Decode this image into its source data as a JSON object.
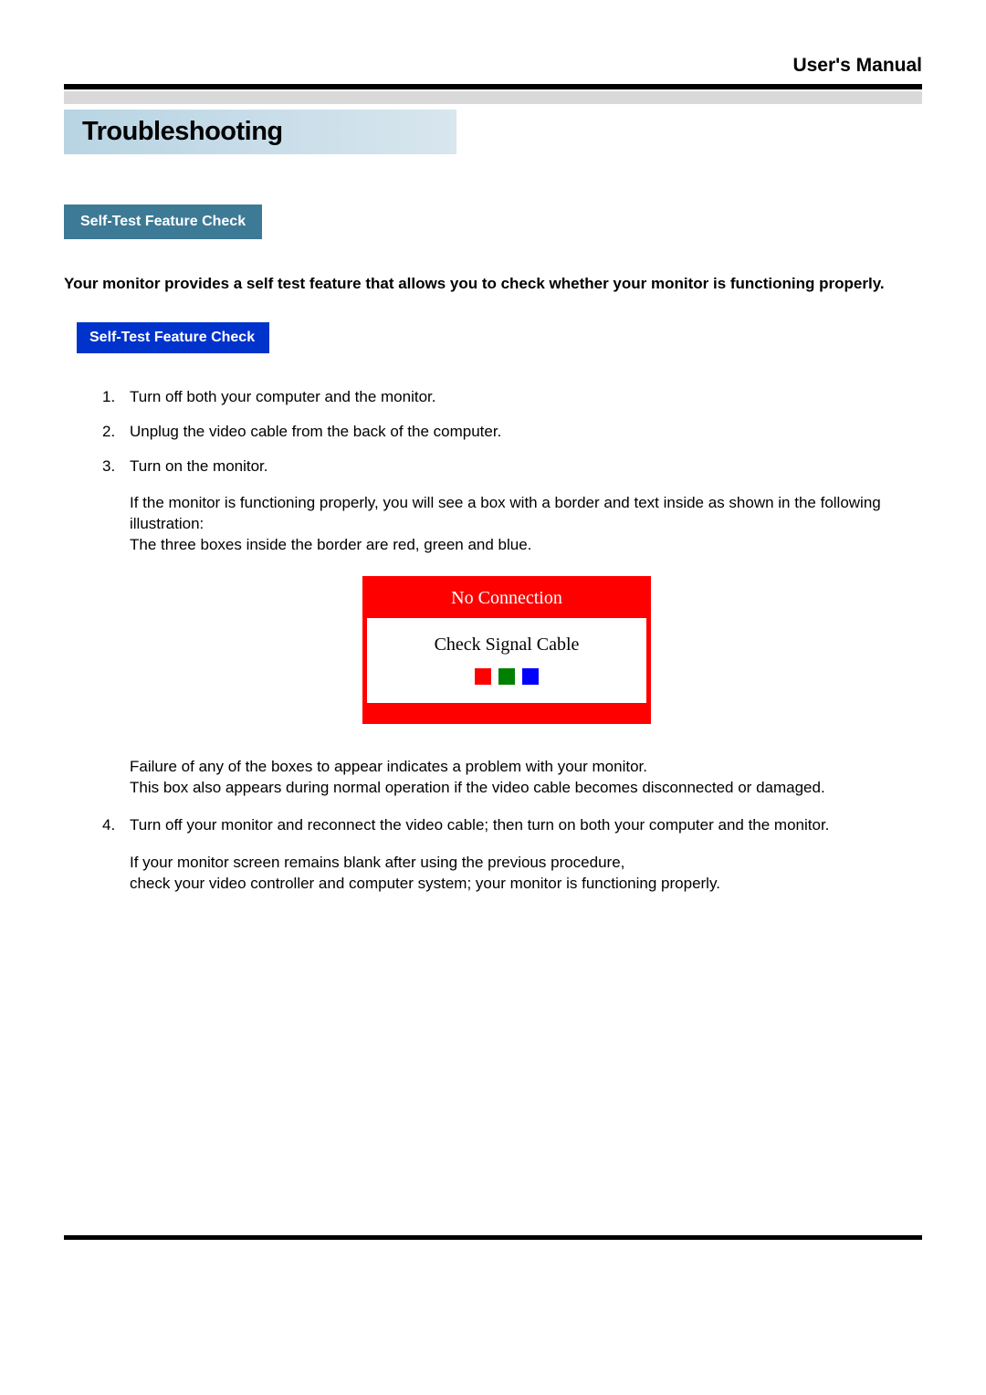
{
  "header": {
    "right_label": "User's Manual"
  },
  "title": "Troubleshooting",
  "section_tag_1": "Self-Test Feature Check",
  "intro": "Your monitor provides a self test feature that allows you to check whether your monitor is functioning properly.",
  "section_tag_2": "Self-Test Feature Check",
  "steps": {
    "s1": "Turn off both your computer and the monitor.",
    "s2": "Unplug the video cable from the back of the computer.",
    "s3": "Turn on the monitor."
  },
  "para_after_3_a": "If the monitor is functioning properly, you will see a box with a border and  text inside as shown in the following illustration:",
  "para_after_3_b": "The three boxes inside the border are red, green and blue.",
  "diagram": {
    "header": "No Connection",
    "body": "Check Signal Cable",
    "colors": [
      "#ff0000",
      "#008000",
      "#0000ff"
    ],
    "border_color": "#ff0000",
    "header_bg": "#ff0000",
    "header_text_color": "#ffffff",
    "body_bg": "#ffffff"
  },
  "para_after_diagram_a": "Failure of any of the boxes to appear indicates a problem with your monitor.",
  "para_after_diagram_b": "This box also appears during normal operation if the video cable becomes disconnected or damaged.",
  "step4": "Turn off your monitor and reconnect the video cable; then turn on both your computer and the monitor.",
  "para_after_4_a": "If your monitor screen remains blank after using the previous procedure,",
  "para_after_4_b": "check your video controller and computer system; your monitor is functioning properly."
}
